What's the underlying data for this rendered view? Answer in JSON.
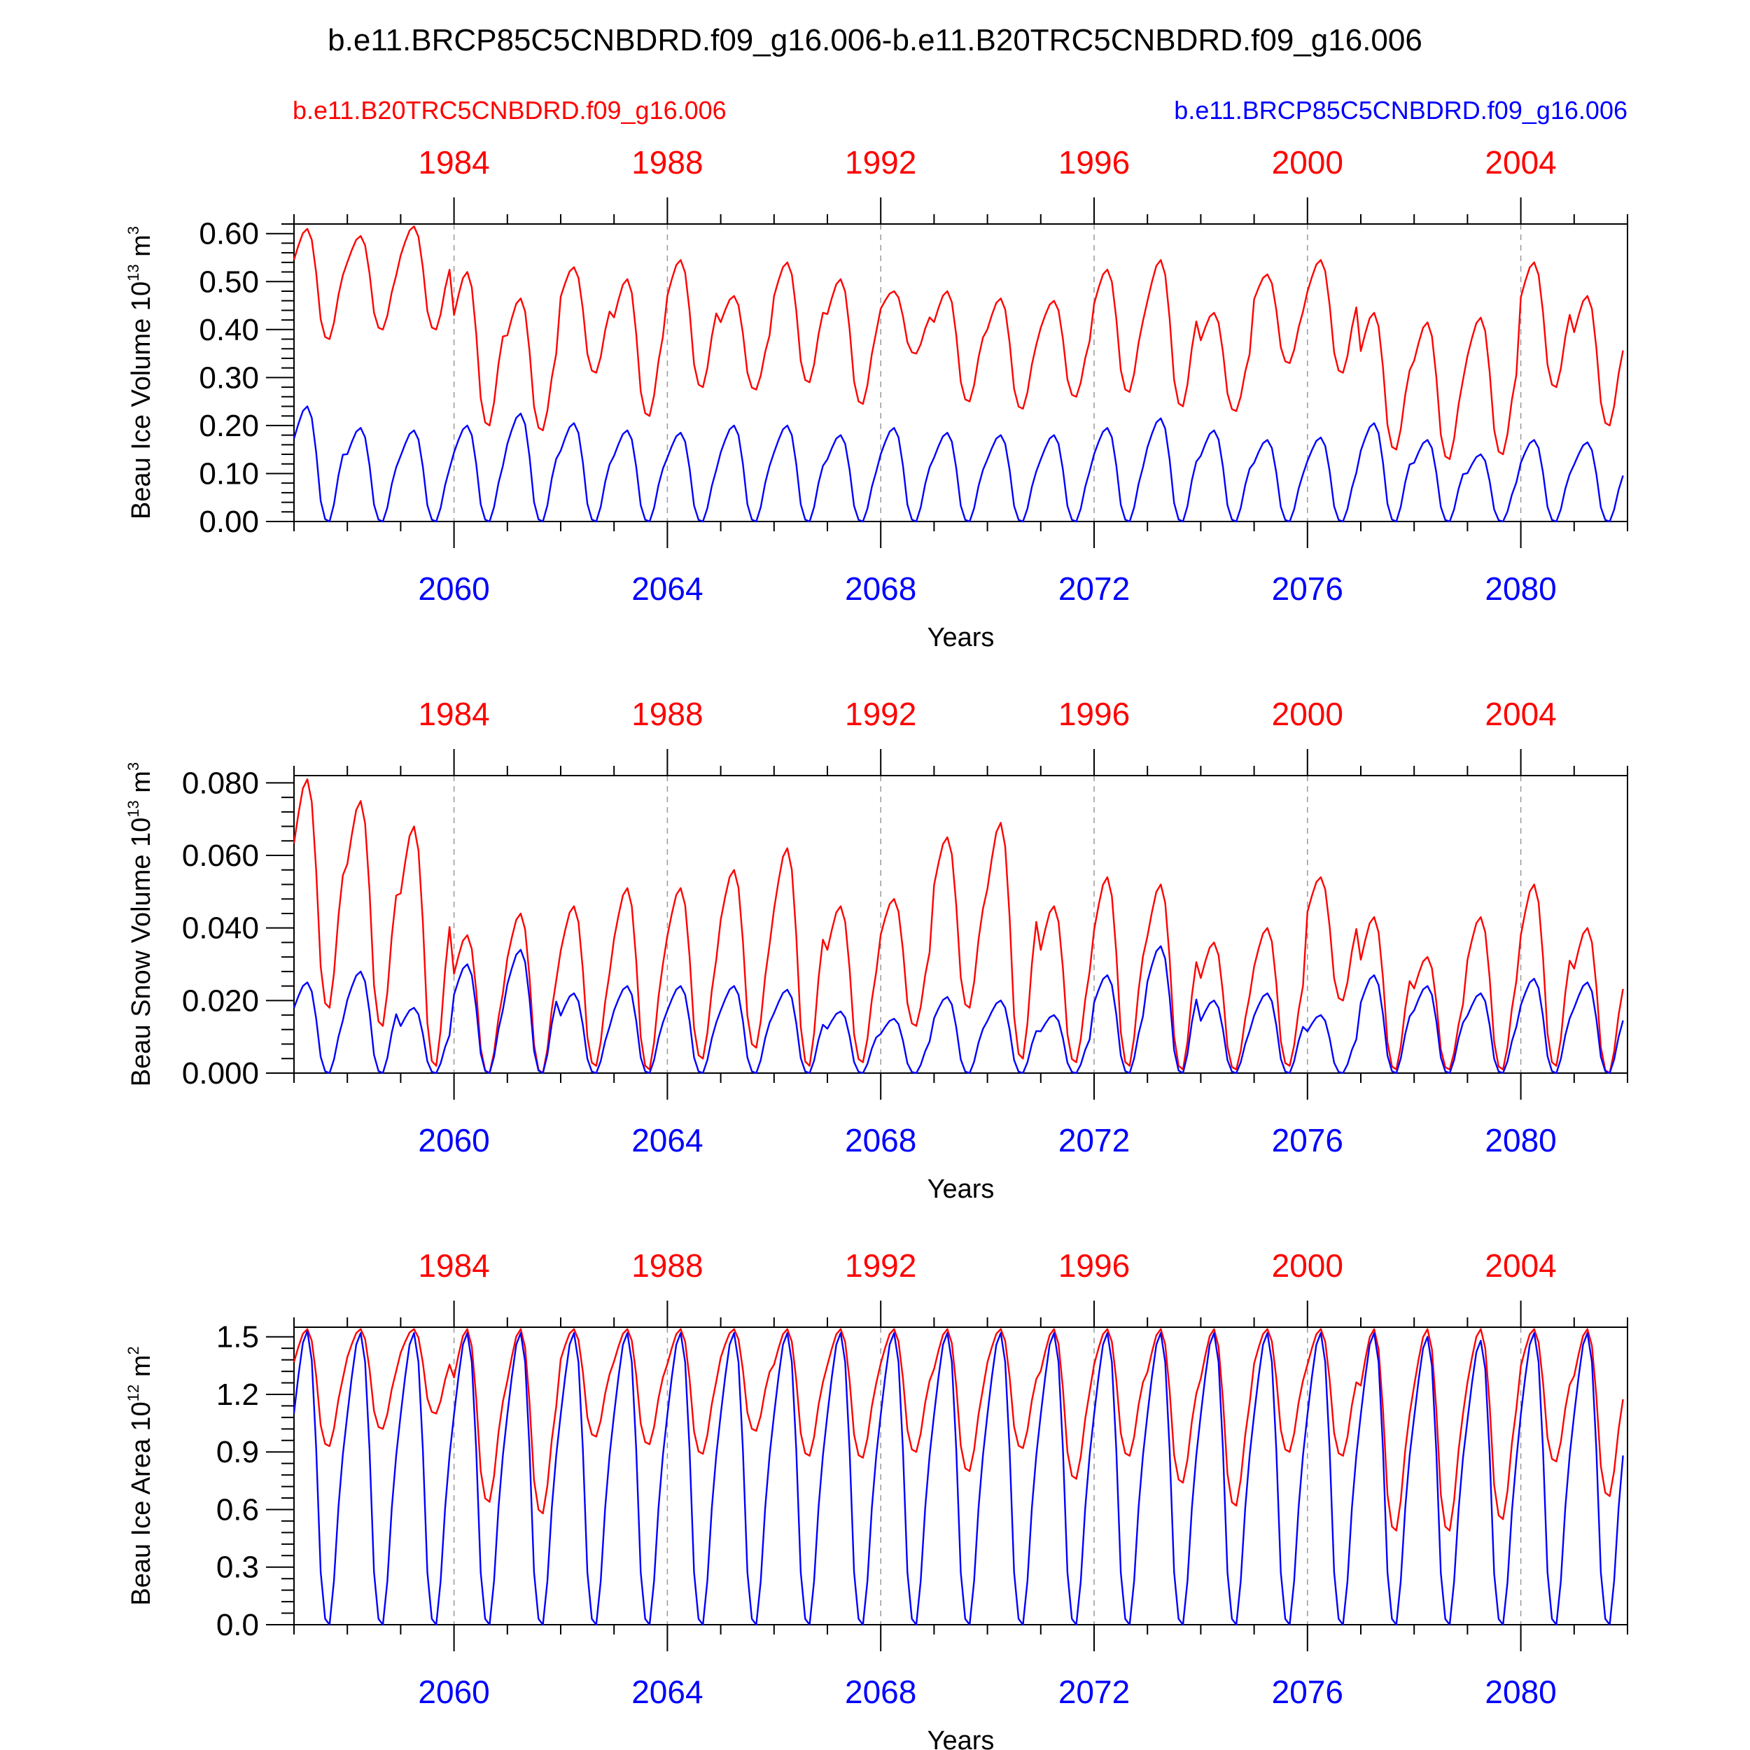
{
  "title": "b.e11.BRCP85C5CNBDRD.f09_g16.006-b.e11.B20TRC5CNBDRD.f09_g16.006",
  "legend": {
    "left": "b.e11.B20TRC5CNBDRD.f09_g16.006",
    "right": "b.e11.BRCP85C5CNBDRD.f09_g16.006"
  },
  "colors": {
    "case_red": "#ff0000",
    "case_blue": "#0000ff"
  },
  "chart_data": [
    {
      "type": "line",
      "ylabel": "Beau Ice Volume",
      "yunit_base": "10",
      "yunit_exp": "13",
      "yunit_tail": "m",
      "yunit_tail_exp": "3",
      "xlabel": "Years",
      "ylim": [
        0,
        0.62
      ],
      "yticks": [
        "0.00",
        "0.10",
        "0.20",
        "0.30",
        "0.40",
        "0.50",
        "0.60"
      ],
      "ytick_values": [
        0,
        0.1,
        0.2,
        0.3,
        0.4,
        0.5,
        0.6
      ],
      "top_ticks": [
        "1984",
        "1988",
        "1992",
        "1996",
        "2000",
        "2004"
      ],
      "bottom_ticks": [
        "2060",
        "2064",
        "2068",
        "2072",
        "2076",
        "2080"
      ],
      "series": [
        {
          "name": "b.e11.B20TRC5CNBDRD.f09_g16.006",
          "color": "#ff0000",
          "annual_max": [
            0.61,
            0.595,
            0.615,
            0.52,
            0.465,
            0.53,
            0.505,
            0.545,
            0.47,
            0.54,
            0.505,
            0.48,
            0.48,
            0.465,
            0.46,
            0.525,
            0.545,
            0.435,
            0.515,
            0.545,
            0.435,
            0.415,
            0.425,
            0.54,
            0.47
          ],
          "annual_min": [
            0.38,
            0.4,
            0.4,
            0.2,
            0.19,
            0.31,
            0.22,
            0.28,
            0.275,
            0.29,
            0.245,
            0.35,
            0.25,
            0.235,
            0.26,
            0.27,
            0.24,
            0.23,
            0.33,
            0.31,
            0.15,
            0.13,
            0.14,
            0.28,
            0.2
          ]
        },
        {
          "name": "b.e11.BRCP85C5CNBDRD.f09_g16.006",
          "color": "#0000ff",
          "annual_max": [
            0.24,
            0.195,
            0.19,
            0.2,
            0.225,
            0.205,
            0.19,
            0.185,
            0.2,
            0.2,
            0.18,
            0.195,
            0.185,
            0.18,
            0.18,
            0.195,
            0.215,
            0.19,
            0.17,
            0.175,
            0.205,
            0.17,
            0.14,
            0.17,
            0.165
          ],
          "annual_min": [
            0.0,
            0.0,
            0.0,
            0.0,
            0.0,
            0.0,
            0.0,
            0.0,
            0.0,
            0.0,
            0.0,
            0.0,
            0.0,
            0.0,
            0.0,
            0.0,
            0.0,
            0.0,
            0.0,
            0.0,
            0.0,
            0.0,
            0.0,
            0.0,
            0.0
          ]
        }
      ]
    },
    {
      "type": "line",
      "ylabel": "Beau Snow Volume",
      "yunit_base": "10",
      "yunit_exp": "13",
      "yunit_tail": "m",
      "yunit_tail_exp": "3",
      "xlabel": "Years",
      "ylim": [
        0,
        0.082
      ],
      "yticks": [
        "0.000",
        "0.020",
        "0.040",
        "0.060",
        "0.080"
      ],
      "ytick_values": [
        0,
        0.02,
        0.04,
        0.06,
        0.08
      ],
      "top_ticks": [
        "1984",
        "1988",
        "1992",
        "1996",
        "2000",
        "2004"
      ],
      "bottom_ticks": [
        "2060",
        "2064",
        "2068",
        "2072",
        "2076",
        "2080"
      ],
      "series": [
        {
          "name": "b.e11.B20TRC5CNBDRD.f09_g16.006",
          "color": "#ff0000",
          "annual_max": [
            0.081,
            0.075,
            0.068,
            0.038,
            0.044,
            0.046,
            0.051,
            0.051,
            0.056,
            0.062,
            0.046,
            0.048,
            0.065,
            0.069,
            0.046,
            0.054,
            0.052,
            0.036,
            0.04,
            0.054,
            0.043,
            0.032,
            0.043,
            0.052,
            0.04
          ],
          "annual_min": [
            0.018,
            0.013,
            0.002,
            0.0,
            0.0,
            0.002,
            0.001,
            0.004,
            0.007,
            0.002,
            0.003,
            0.013,
            0.018,
            0.004,
            0.003,
            0.002,
            0.001,
            0.001,
            0.002,
            0.02,
            0.001,
            0.001,
            0.001,
            0.002,
            0.0
          ]
        },
        {
          "name": "b.e11.BRCP85C5CNBDRD.f09_g16.006",
          "color": "#0000ff",
          "annual_max": [
            0.025,
            0.028,
            0.018,
            0.03,
            0.034,
            0.022,
            0.024,
            0.024,
            0.024,
            0.023,
            0.017,
            0.015,
            0.021,
            0.02,
            0.016,
            0.027,
            0.035,
            0.02,
            0.022,
            0.016,
            0.027,
            0.024,
            0.022,
            0.026,
            0.025
          ],
          "annual_min": [
            0.0,
            0.0,
            0.0,
            0.0,
            0.0,
            0.0,
            0.0,
            0.0,
            0.0,
            0.0,
            0.0,
            0.0,
            0.0,
            0.0,
            0.0,
            0.0,
            0.0,
            0.0,
            0.0,
            0.0,
            0.0,
            0.0,
            0.0,
            0.0,
            0.0
          ]
        }
      ]
    },
    {
      "type": "line",
      "ylabel": "Beau Ice Area",
      "yunit_base": "10",
      "yunit_exp": "12",
      "yunit_tail": "m",
      "yunit_tail_exp": "2",
      "xlabel": "Years",
      "ylim": [
        0,
        1.55
      ],
      "yticks": [
        "0.0",
        "0.3",
        "0.6",
        "0.9",
        "1.2",
        "1.5"
      ],
      "ytick_values": [
        0,
        0.3,
        0.6,
        0.9,
        1.2,
        1.5
      ],
      "top_ticks": [
        "1984",
        "1988",
        "1992",
        "1996",
        "2000",
        "2004"
      ],
      "bottom_ticks": [
        "2060",
        "2064",
        "2068",
        "2072",
        "2076",
        "2080"
      ],
      "series": [
        {
          "name": "b.e11.B20TRC5CNBDRD.f09_g16.006",
          "color": "#ff0000",
          "annual_max": [
            1.54,
            1.54,
            1.54,
            1.54,
            1.54,
            1.54,
            1.54,
            1.54,
            1.54,
            1.54,
            1.54,
            1.54,
            1.54,
            1.54,
            1.54,
            1.54,
            1.54,
            1.54,
            1.54,
            1.54,
            1.54,
            1.54,
            1.54,
            1.54,
            1.54
          ],
          "annual_min": [
            0.93,
            1.02,
            1.1,
            0.64,
            0.58,
            0.98,
            0.94,
            0.89,
            1.01,
            0.88,
            0.87,
            0.9,
            0.8,
            0.92,
            0.76,
            0.88,
            0.74,
            0.62,
            0.9,
            0.88,
            0.49,
            0.49,
            0.55,
            0.85,
            0.67
          ]
        },
        {
          "name": "b.e11.BRCP85C5CNBDRD.f09_g16.006",
          "color": "#0000ff",
          "annual_max": [
            1.53,
            1.52,
            1.52,
            1.52,
            1.52,
            1.52,
            1.52,
            1.52,
            1.52,
            1.52,
            1.52,
            1.52,
            1.52,
            1.52,
            1.52,
            1.52,
            1.52,
            1.52,
            1.52,
            1.52,
            1.52,
            1.5,
            1.48,
            1.52,
            1.52
          ],
          "annual_min": [
            0.0,
            0.0,
            0.0,
            0.0,
            0.0,
            0.0,
            0.0,
            0.0,
            0.0,
            0.0,
            0.0,
            0.0,
            0.0,
            0.0,
            0.0,
            0.0,
            0.0,
            0.0,
            0.0,
            0.0,
            0.0,
            0.0,
            0.0,
            0.0,
            0.0
          ]
        }
      ]
    }
  ]
}
